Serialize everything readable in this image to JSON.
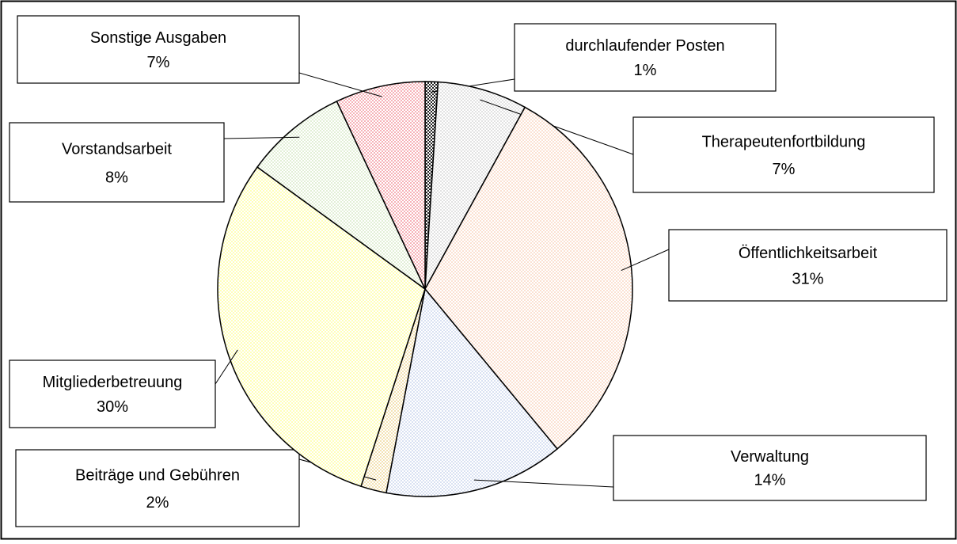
{
  "chart_data": {
    "type": "pie",
    "categories": [
      "durchlaufender Posten",
      "Therapeutenfortbildung",
      "Öffentlichkeitsarbeit",
      "Verwaltung",
      "Beiträge und Gebühren",
      "Mitgliederbetreuung",
      "Vorstandsarbeit",
      "Sonstige Ausgaben"
    ],
    "values": [
      1,
      7,
      31,
      14,
      2,
      30,
      8,
      7
    ],
    "value_labels": [
      "1%",
      "7%",
      "31%",
      "14%",
      "2%",
      "30%",
      "8%",
      "7%"
    ],
    "colors": [
      "#222222",
      "#e2e2e2",
      "#fbe1d2",
      "#d9e1f2",
      "#f3e2b4",
      "#ffffb8",
      "#e2efd6",
      "#f6b2b8"
    ]
  }
}
